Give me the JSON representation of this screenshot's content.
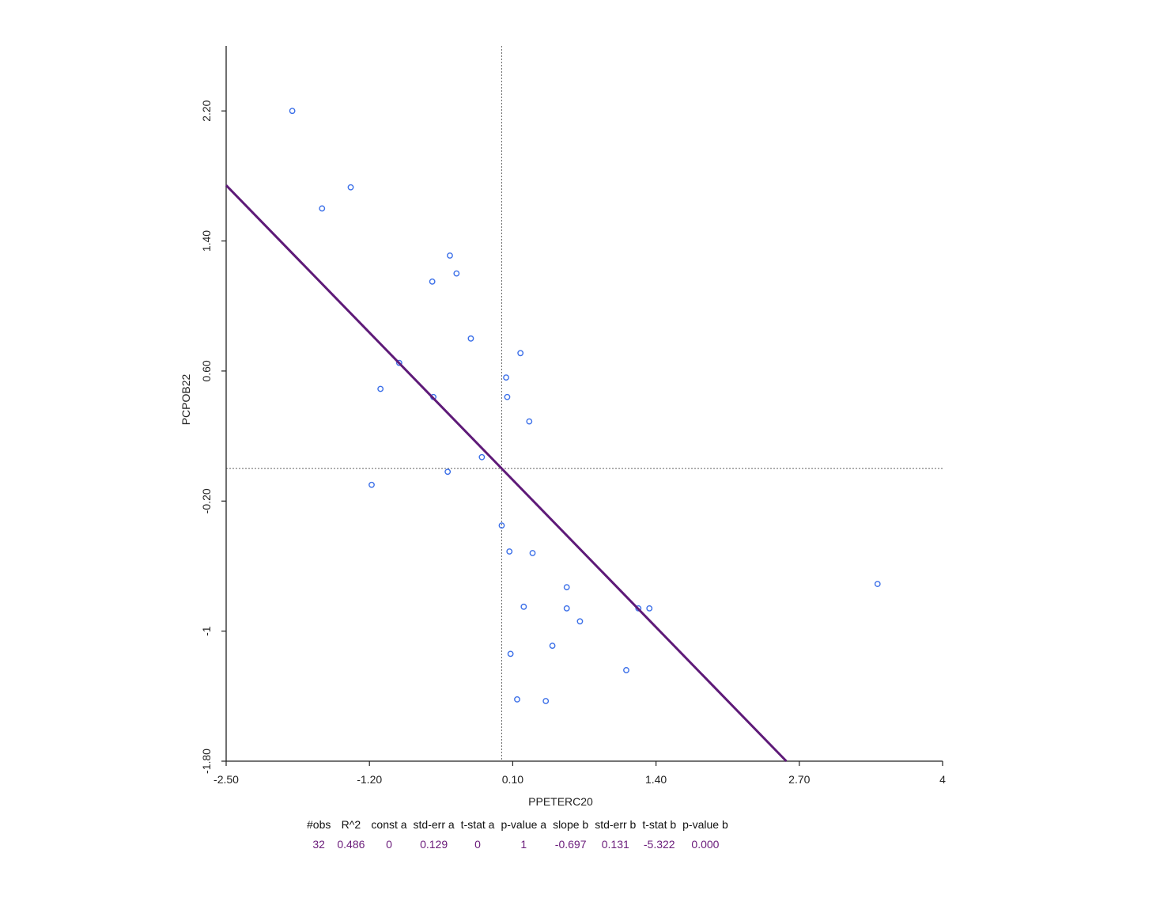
{
  "chart_data": {
    "type": "scatter",
    "xlabel": "PPETERC20",
    "ylabel": "PCPOB22",
    "xlim": [
      -2.5,
      4
    ],
    "ylim": [
      -1.8,
      2.6
    ],
    "x_ticks": [
      "-2.50",
      "-1.20",
      "0.10",
      "1.40",
      "2.70",
      "4"
    ],
    "y_ticks": [
      "2.20",
      "1.40",
      "0.60",
      "-0.20",
      "-1",
      "-1.80"
    ],
    "reference_lines": {
      "x": 0,
      "y": 0
    },
    "regression": {
      "intercept": 0,
      "slope": -0.697
    },
    "points": [
      {
        "x": -1.9,
        "y": 2.2
      },
      {
        "x": -1.63,
        "y": 1.6
      },
      {
        "x": -1.37,
        "y": 1.73
      },
      {
        "x": -0.63,
        "y": 1.15
      },
      {
        "x": -0.47,
        "y": 1.31
      },
      {
        "x": -0.41,
        "y": 1.2
      },
      {
        "x": -0.28,
        "y": 0.8
      },
      {
        "x": -0.93,
        "y": 0.65
      },
      {
        "x": -1.1,
        "y": 0.49
      },
      {
        "x": -0.62,
        "y": 0.44
      },
      {
        "x": -1.18,
        "y": -0.1
      },
      {
        "x": -0.18,
        "y": 0.07
      },
      {
        "x": -0.49,
        "y": -0.02
      },
      {
        "x": 0.17,
        "y": 0.71
      },
      {
        "x": 0.04,
        "y": 0.56
      },
      {
        "x": 0.05,
        "y": 0.44
      },
      {
        "x": 0.25,
        "y": 0.29
      },
      {
        "x": 0.0,
        "y": -0.35
      },
      {
        "x": 0.07,
        "y": -0.51
      },
      {
        "x": 0.28,
        "y": -0.52
      },
      {
        "x": 0.59,
        "y": -0.73
      },
      {
        "x": 0.59,
        "y": -0.86
      },
      {
        "x": 0.71,
        "y": -0.94
      },
      {
        "x": 0.2,
        "y": -0.85
      },
      {
        "x": 0.46,
        "y": -1.09
      },
      {
        "x": 0.08,
        "y": -1.14
      },
      {
        "x": 1.13,
        "y": -1.24
      },
      {
        "x": 1.24,
        "y": -0.86
      },
      {
        "x": 1.34,
        "y": -0.86
      },
      {
        "x": 0.14,
        "y": -1.42
      },
      {
        "x": 0.4,
        "y": -1.43
      },
      {
        "x": 3.41,
        "y": -0.71
      }
    ],
    "colors": {
      "points": "#3b6fe8",
      "regression": "#5e1a78",
      "axes": "#222222",
      "reference": "#666666"
    }
  },
  "stats": {
    "headers": [
      "#obs",
      "R^2",
      "const a",
      "std-err a",
      "t-stat a",
      "p-value a",
      "slope b",
      "std-err b",
      "t-stat b",
      "p-value b"
    ],
    "values": [
      "32",
      "0.486",
      "0",
      "0.129",
      "0",
      "1",
      "-0.697",
      "0.131",
      "-5.322",
      "0.000"
    ]
  }
}
